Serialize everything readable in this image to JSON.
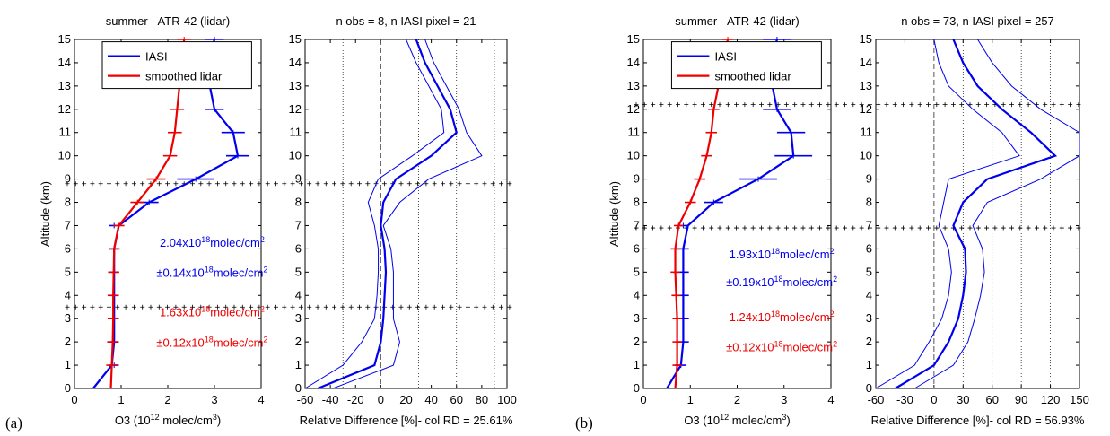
{
  "figure_labels": [
    "(a)",
    "(b)"
  ],
  "chart_data": [
    {
      "type": "line",
      "title": "summer - ATR-42 (lidar)",
      "xlabel": "O3 (10^12 molec/cm^3)",
      "xlabel_base": "O3 (10",
      "xlabel_sup": "12",
      "xlabel_tail": " molec/cm",
      "xlabel_sup2": "3",
      "xlabel_end": ")",
      "ylabel": "Altitude (km)",
      "xlim": [
        0,
        4
      ],
      "ylim": [
        0,
        15
      ],
      "xticks": [
        0,
        1,
        2,
        3,
        4
      ],
      "yticks": [
        0,
        1,
        2,
        3,
        4,
        5,
        6,
        7,
        8,
        9,
        10,
        11,
        12,
        13,
        14,
        15
      ],
      "legend": {
        "placement": "top",
        "entries": [
          "IASI",
          "smoothed lidar"
        ]
      },
      "colors": {
        "IASI": "#0000ee",
        "smoothed lidar": "#ee0000"
      },
      "hlines": [
        8.8,
        3.5
      ],
      "series": [
        {
          "name": "IASI",
          "color": "#0000ee",
          "x": [
            0.4,
            0.8,
            0.85,
            0.85,
            0.85,
            0.85,
            0.85,
            0.95,
            1.6,
            2.6,
            3.5,
            3.4,
            3.0,
            2.9,
            2.85,
            3.0
          ],
          "y": [
            0,
            1,
            2,
            3,
            4,
            5,
            6,
            7,
            8,
            9,
            10,
            11,
            12,
            13,
            14,
            15
          ],
          "err_y": [
            1,
            2,
            3,
            4,
            5,
            6,
            7,
            8,
            9,
            10,
            11,
            12,
            13,
            14,
            15
          ],
          "err_x": [
            0.85,
            0.85,
            0.85,
            0.85,
            0.85,
            0.85,
            0.85,
            1.6,
            2.6,
            3.5,
            3.4,
            3.0,
            2.9,
            2.85,
            3.0
          ],
          "err_half": [
            0.1,
            0.1,
            0.1,
            0.1,
            0.1,
            0.1,
            0.1,
            0.2,
            0.4,
            0.25,
            0.25,
            0.2,
            0.2,
            0.2,
            0.2
          ]
        },
        {
          "name": "smoothed lidar",
          "color": "#ee0000",
          "x": [
            0.78,
            0.8,
            0.82,
            0.83,
            0.83,
            0.84,
            0.85,
            0.95,
            1.35,
            1.75,
            2.05,
            2.15,
            2.2,
            2.25,
            2.3,
            2.35
          ],
          "y": [
            0,
            1,
            2,
            3,
            4,
            5,
            6,
            7,
            8,
            9,
            10,
            11,
            12,
            13,
            14,
            15
          ],
          "err_y": [
            1,
            2,
            3,
            4,
            5,
            6,
            7,
            8,
            9,
            10,
            11,
            12,
            13,
            14,
            15
          ],
          "err_x": [
            0.8,
            0.82,
            0.83,
            0.83,
            0.84,
            0.85,
            0.95,
            1.35,
            1.75,
            2.05,
            2.15,
            2.2,
            2.25,
            2.3,
            2.35
          ],
          "err_half": [
            0.12,
            0.12,
            0.12,
            0.12,
            0.12,
            0.12,
            0.12,
            0.15,
            0.2,
            0.15,
            0.15,
            0.15,
            0.15,
            0.15,
            0.15
          ]
        }
      ],
      "annotations": [
        {
          "mant": "2.04x10",
          "exp": "18",
          "unit": "molec/cm",
          "unit_exp": "2",
          "color": "#0000ee",
          "y": 6.1
        },
        {
          "mant": "±0.14x10",
          "exp": "18",
          "unit": "molec/cm",
          "unit_exp": "2",
          "color": "#0000ee",
          "y": 4.8
        },
        {
          "mant": "1.63x10",
          "exp": "18",
          "unit": "molec/cm",
          "unit_exp": "2",
          "color": "#ee0000",
          "y": 3.1
        },
        {
          "mant": "±0.12x10",
          "exp": "18",
          "unit": "molec/cm",
          "unit_exp": "2",
          "color": "#ee0000",
          "y": 1.8
        }
      ]
    },
    {
      "type": "line",
      "title": "n obs = 8, n IASI pixel = 21",
      "xlabel": "Relative Difference [%]- col RD = 25.61%",
      "xlim": [
        -60,
        100
      ],
      "ylim": [
        0,
        15
      ],
      "xticks": [
        -60,
        -40,
        -20,
        0,
        20,
        40,
        60,
        80,
        100
      ],
      "yticks": [
        0,
        1,
        2,
        3,
        4,
        5,
        6,
        7,
        8,
        9,
        10,
        11,
        12,
        13,
        14,
        15
      ],
      "vlines_dotted": [
        -30,
        30,
        60,
        90
      ],
      "vline_dashed": 0,
      "series": [
        {
          "name": "",
          "role": "mean",
          "color": "#0000ee",
          "x": [
            -50,
            -5,
            0,
            2,
            3,
            4,
            3,
            0,
            2,
            12,
            40,
            60,
            55,
            45,
            35,
            28
          ],
          "y": [
            0,
            1,
            2,
            3,
            4,
            5,
            6,
            7,
            8,
            9,
            10,
            11,
            12,
            13,
            14,
            15
          ]
        },
        {
          "name": "",
          "role": "upper",
          "color": "#0000ee",
          "x": [
            -38,
            10,
            15,
            10,
            10,
            10,
            8,
            2,
            15,
            38,
            80,
            68,
            62,
            52,
            42,
            35
          ],
          "y": [
            0,
            1,
            2,
            3,
            4,
            5,
            6,
            7,
            8,
            9,
            10,
            11,
            12,
            13,
            14,
            15
          ]
        },
        {
          "name": "",
          "role": "lower",
          "color": "#0000ee",
          "x": [
            -65,
            -30,
            -15,
            -5,
            -3,
            -2,
            -2,
            -5,
            -10,
            -2,
            25,
            50,
            48,
            38,
            28,
            20
          ],
          "y": [
            0,
            1,
            2,
            3,
            4,
            5,
            6,
            7,
            8,
            9,
            10,
            11,
            12,
            13,
            14,
            15
          ]
        }
      ]
    },
    {
      "type": "line",
      "title": "summer - ATR-42 (lidar)",
      "xlabel": "O3 (10^12 molec/cm^3)",
      "xlabel_base": "O3 (10",
      "xlabel_sup": "12",
      "xlabel_tail": " molec/cm",
      "xlabel_sup2": "3",
      "xlabel_end": ")",
      "ylabel": "Altitude (km)",
      "xlim": [
        0,
        4
      ],
      "ylim": [
        0,
        15
      ],
      "xticks": [
        0,
        1,
        2,
        3,
        4
      ],
      "yticks": [
        0,
        1,
        2,
        3,
        4,
        5,
        6,
        7,
        8,
        9,
        10,
        11,
        12,
        13,
        14,
        15
      ],
      "legend": {
        "placement": "top",
        "entries": [
          "IASI",
          "smoothed lidar"
        ]
      },
      "colors": {
        "IASI": "#0000ee",
        "smoothed lidar": "#ee0000"
      },
      "hlines": [
        12.2,
        6.9
      ],
      "series": [
        {
          "name": "IASI",
          "color": "#0000ee",
          "x": [
            0.5,
            0.8,
            0.85,
            0.85,
            0.85,
            0.85,
            0.85,
            0.95,
            1.5,
            2.45,
            3.2,
            3.15,
            2.85,
            2.75,
            2.7,
            2.85
          ],
          "y": [
            0,
            1,
            2,
            3,
            4,
            5,
            6,
            7,
            8,
            9,
            10,
            11,
            12,
            13,
            14,
            15
          ],
          "err_y": [
            1,
            2,
            3,
            4,
            5,
            6,
            7,
            8,
            9,
            10,
            11,
            12,
            13,
            14,
            15
          ],
          "err_x": [
            0.8,
            0.85,
            0.85,
            0.85,
            0.85,
            0.85,
            0.85,
            1.5,
            2.45,
            3.2,
            3.15,
            2.85,
            2.75,
            2.7,
            2.85
          ],
          "err_half": [
            0.12,
            0.12,
            0.12,
            0.12,
            0.12,
            0.12,
            0.12,
            0.2,
            0.4,
            0.4,
            0.3,
            0.3,
            0.3,
            0.3,
            0.3
          ]
        },
        {
          "name": "smoothed lidar",
          "color": "#ee0000",
          "x": [
            0.68,
            0.72,
            0.72,
            0.72,
            0.7,
            0.68,
            0.68,
            0.75,
            1.0,
            1.2,
            1.35,
            1.45,
            1.5,
            1.6,
            1.7,
            1.8
          ],
          "y": [
            0,
            1,
            2,
            3,
            4,
            5,
            6,
            7,
            8,
            9,
            10,
            11,
            12,
            13,
            14,
            15
          ],
          "err_y": [
            1,
            2,
            3,
            4,
            5,
            6,
            7,
            8,
            9,
            10,
            11,
            12,
            13,
            14,
            15
          ],
          "err_x": [
            0.72,
            0.72,
            0.72,
            0.7,
            0.68,
            0.68,
            0.75,
            1.0,
            1.2,
            1.35,
            1.45,
            1.5,
            1.6,
            1.7,
            1.8
          ],
          "err_half": [
            0.1,
            0.1,
            0.1,
            0.1,
            0.1,
            0.1,
            0.1,
            0.12,
            0.12,
            0.12,
            0.12,
            0.12,
            0.12,
            0.12,
            0.12
          ]
        }
      ],
      "annotations": [
        {
          "mant": "1.93x10",
          "exp": "18",
          "unit": "molec/cm",
          "unit_exp": "2",
          "color": "#0000ee",
          "y": 5.6
        },
        {
          "mant": "±0.19x10",
          "exp": "18",
          "unit": "molec/cm",
          "unit_exp": "2",
          "color": "#0000ee",
          "y": 4.4
        },
        {
          "mant": "1.24x10",
          "exp": "18",
          "unit": "molec/cm",
          "unit_exp": "2",
          "color": "#ee0000",
          "y": 2.9
        },
        {
          "mant": "±0.12x10",
          "exp": "18",
          "unit": "molec/cm",
          "unit_exp": "2",
          "color": "#ee0000",
          "y": 1.6
        }
      ]
    },
    {
      "type": "line",
      "title": "n obs = 73, n IASI pixel = 257",
      "xlabel": "Relative Difference [%]- col RD = 56.93%",
      "xlim": [
        -60,
        150
      ],
      "ylim": [
        0,
        15
      ],
      "xticks": [
        -60,
        -30,
        0,
        30,
        60,
        90,
        120,
        150
      ],
      "yticks": [
        0,
        1,
        2,
        3,
        4,
        5,
        6,
        7,
        8,
        9,
        10,
        11,
        12,
        13,
        14,
        15
      ],
      "vlines_dotted": [
        -30,
        30,
        60,
        90,
        120,
        150
      ],
      "vline_dashed": 0,
      "series": [
        {
          "name": "",
          "role": "mean",
          "color": "#0000ee",
          "x": [
            -40,
            0,
            15,
            25,
            30,
            33,
            32,
            20,
            30,
            55,
            125,
            100,
            70,
            45,
            30,
            20
          ],
          "y": [
            0,
            1,
            2,
            3,
            4,
            5,
            6,
            7,
            8,
            9,
            10,
            11,
            12,
            13,
            14,
            15
          ]
        },
        {
          "name": "",
          "role": "upper",
          "color": "#0000ee",
          "x": [
            -20,
            20,
            35,
            42,
            48,
            52,
            50,
            40,
            55,
            110,
            150,
            160,
            110,
            80,
            60,
            45
          ],
          "y": [
            0,
            1,
            2,
            3,
            4,
            5,
            6,
            7,
            8,
            9,
            10,
            11,
            12,
            13,
            14,
            15
          ]
        },
        {
          "name": "",
          "role": "lower",
          "color": "#0000ee",
          "x": [
            -60,
            -20,
            -5,
            8,
            15,
            18,
            15,
            5,
            10,
            15,
            88,
            70,
            40,
            15,
            5,
            0
          ],
          "y": [
            0,
            1,
            2,
            3,
            4,
            5,
            6,
            7,
            8,
            9,
            10,
            11,
            12,
            13,
            14,
            15
          ]
        }
      ]
    }
  ]
}
